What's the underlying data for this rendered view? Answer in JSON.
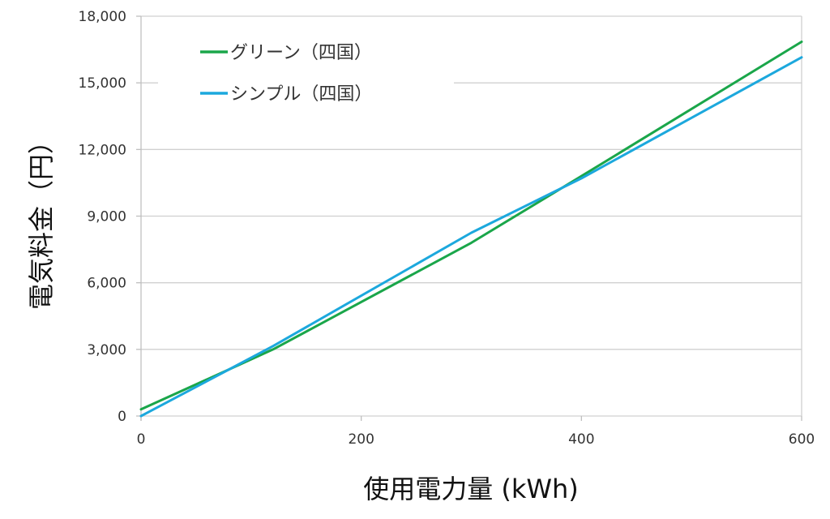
{
  "chart_data": {
    "type": "line",
    "title": "",
    "xlabel": "使用電力量 (kWh)",
    "ylabel": "電気料金（円）",
    "xlim": [
      0,
      600
    ],
    "ylim": [
      0,
      18000
    ],
    "x_ticks": [
      0,
      200,
      400,
      600
    ],
    "x_tick_labels": [
      "0",
      "200",
      "400",
      "600"
    ],
    "y_ticks": [
      0,
      3000,
      6000,
      9000,
      12000,
      15000,
      18000
    ],
    "y_tick_labels": [
      "0",
      "3,000",
      "6,000",
      "9,000",
      "12,000",
      "15,000",
      "18,000"
    ],
    "grid": {
      "horizontal": true,
      "vertical": false
    },
    "legend_position": "upper-left (inside plot)",
    "x": [
      0,
      80,
      120,
      300,
      400,
      600
    ],
    "series": [
      {
        "name": "グリーン（四国）",
        "color": "#1aa64a",
        "values": [
          300,
          2100,
          3000,
          7800,
          10800,
          16850
        ]
      },
      {
        "name": "シンプル（四国）",
        "color": "#1ca8dd",
        "values": [
          0,
          2100,
          3150,
          8250,
          10700,
          16150
        ]
      }
    ]
  },
  "legend": {
    "items": [
      {
        "label": "グリーン（四国）",
        "color": "#1aa64a"
      },
      {
        "label": "シンプル（四国）",
        "color": "#1ca8dd"
      }
    ]
  },
  "colors": {
    "grid": "#d0d0d0",
    "axis": "#bfbfbf",
    "background": "#ffffff"
  }
}
